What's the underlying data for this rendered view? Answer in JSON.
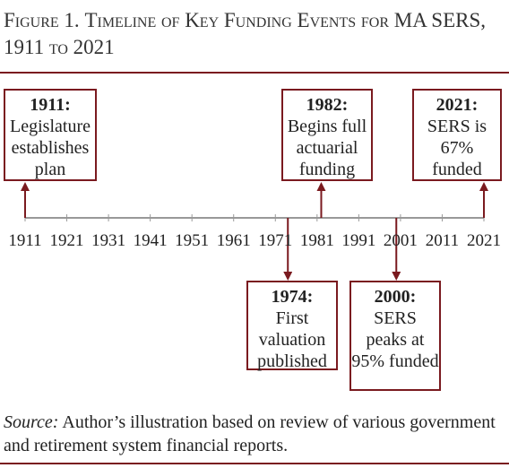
{
  "title": {
    "figure_number": "Figure 1.",
    "text": "Timeline of Key Funding Events for MA SERS, 1911 to 2021"
  },
  "axis": {
    "ticks": [
      "1911",
      "1921",
      "1931",
      "1941",
      "1951",
      "1961",
      "1971",
      "1981",
      "1991",
      "2001",
      "2011",
      "2021"
    ]
  },
  "events": [
    {
      "year_label": "1911:",
      "description": "Legislature establishes plan",
      "year": 1911,
      "side": "above"
    },
    {
      "year_label": "1974:",
      "description": "First valuation published",
      "year": 1974,
      "side": "below"
    },
    {
      "year_label": "1982:",
      "description": "Begins full actuarial funding",
      "year": 1982,
      "side": "above"
    },
    {
      "year_label": "2000:",
      "description": "SERS peaks at 95% funded",
      "year": 2000,
      "side": "below"
    },
    {
      "year_label": "2021:",
      "description": "SERS is 67% funded",
      "year": 2021,
      "side": "above"
    }
  ],
  "source": {
    "label": "Source:",
    "text": "Author’s illustration based on review of various government and retirement system financial reports."
  },
  "colors": {
    "accent": "#7a1a1f",
    "axis": "#999999"
  }
}
